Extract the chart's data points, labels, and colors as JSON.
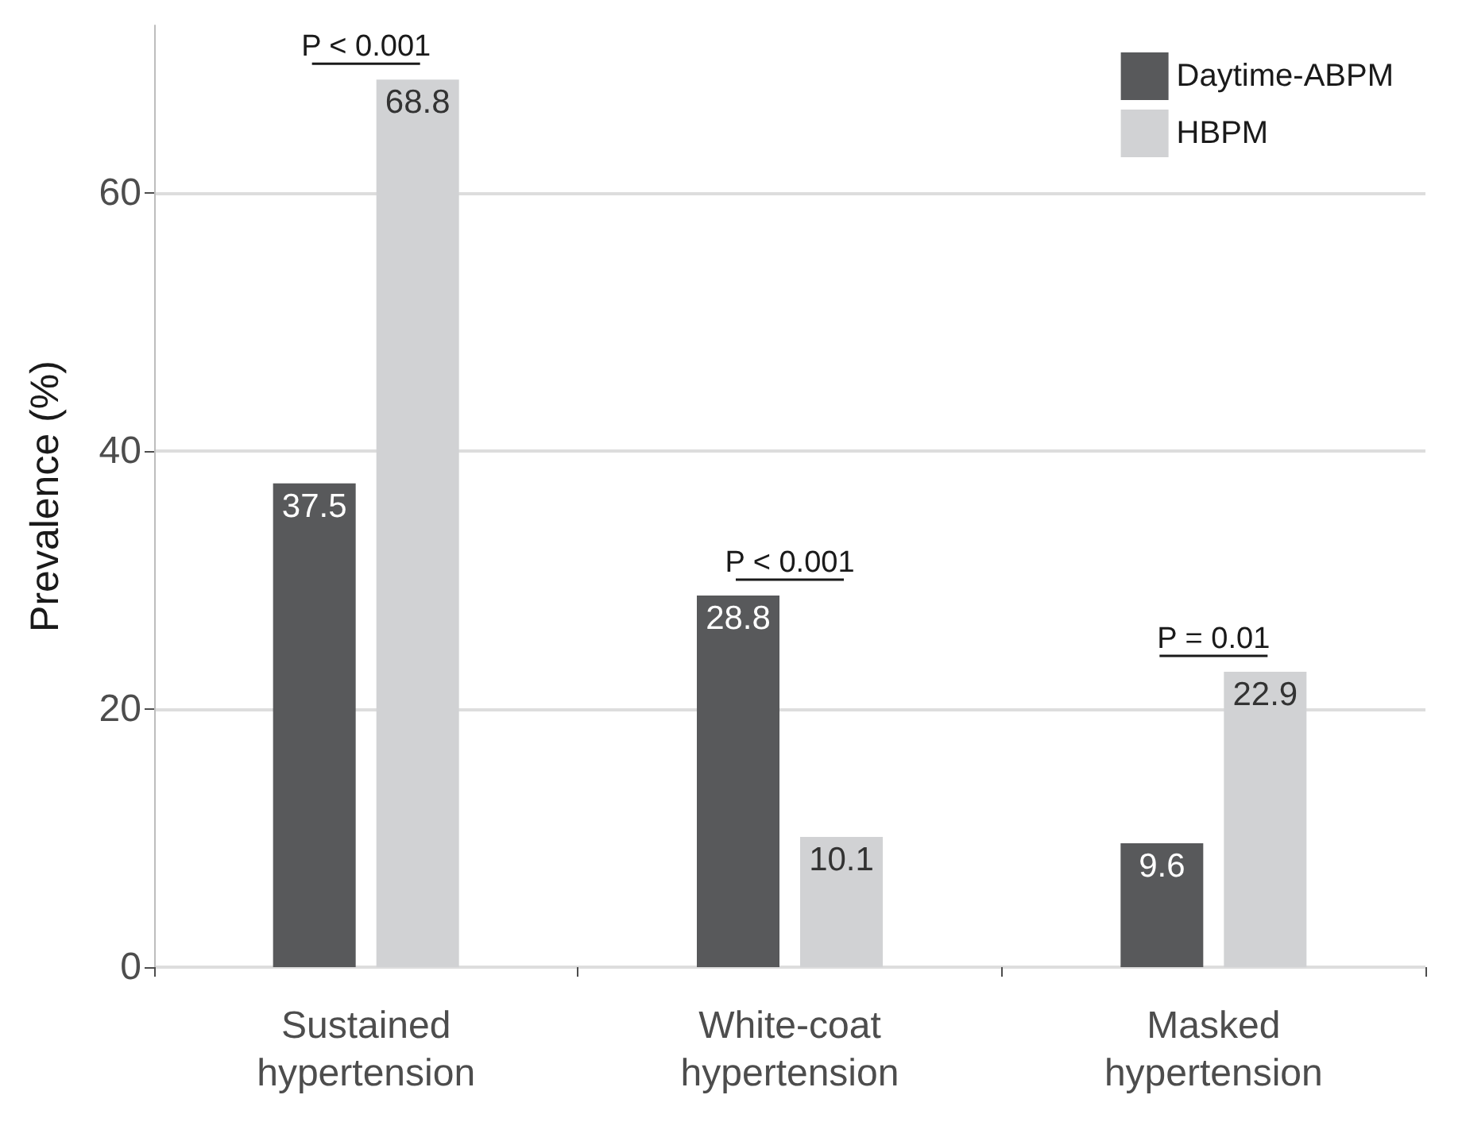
{
  "chart_data": {
    "type": "bar",
    "ylabel": "Prevalence (%)",
    "categories": [
      "Sustained\nhypertension",
      "White-coat\nhypertension",
      "Masked\nhypertension"
    ],
    "series": [
      {
        "name": "Daytime-ABPM",
        "color": "#58595b",
        "values": [
          37.5,
          28.8,
          9.6
        ]
      },
      {
        "name": "HBPM",
        "color": "#d1d2d4",
        "values": [
          68.8,
          10.1,
          22.9
        ]
      }
    ],
    "ylim": [
      0,
      73
    ],
    "yticks": [
      0,
      20,
      40,
      60
    ],
    "grid": "y",
    "legend": "top right",
    "data_labels": true,
    "annotations": [
      "P < 0.001",
      "P < 0.001",
      "P = 0.01"
    ]
  }
}
